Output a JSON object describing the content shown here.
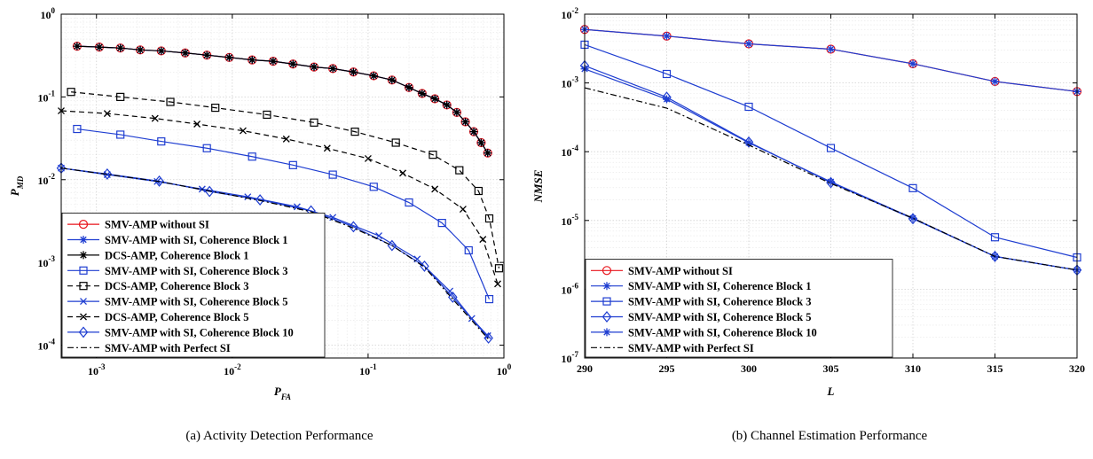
{
  "chart_data": [
    {
      "type": "line",
      "xscale": "log",
      "yscale": "log",
      "xlim": [
        0.00055,
        1
      ],
      "ylim": [
        7e-05,
        1
      ],
      "xlabel": "P",
      "xlabel_sub": "FA",
      "ylabel": "P",
      "ylabel_sub": "MD",
      "grid": true,
      "legend_position": "bottom-left",
      "caption": "(a)  Activity Detection Performance",
      "xticks": [
        {
          "v": 0.001,
          "base": "10",
          "exp": "-3"
        },
        {
          "v": 0.01,
          "base": "10",
          "exp": "-2"
        },
        {
          "v": 0.1,
          "base": "10",
          "exp": "-1"
        },
        {
          "v": 1,
          "base": "10",
          "exp": "0"
        }
      ],
      "yticks": [
        {
          "v": 0.0001,
          "base": "10",
          "exp": "-4"
        },
        {
          "v": 0.001,
          "base": "10",
          "exp": "-3"
        },
        {
          "v": 0.01,
          "base": "10",
          "exp": "-2"
        },
        {
          "v": 0.1,
          "base": "10",
          "exp": "-1"
        },
        {
          "v": 1,
          "base": "10",
          "exp": "0"
        }
      ],
      "series": [
        {
          "name": "SMV-AMP without SI",
          "color": "#e8141b",
          "dash": "",
          "marker": "circle",
          "x": [
            0.00072,
            0.00105,
            0.0015,
            0.0021,
            0.003,
            0.0045,
            0.0065,
            0.0095,
            0.014,
            0.02,
            0.028,
            0.04,
            0.055,
            0.078,
            0.11,
            0.15,
            0.2,
            0.25,
            0.31,
            0.38,
            0.45,
            0.52,
            0.6,
            0.68,
            0.76
          ],
          "y": [
            0.41,
            0.4,
            0.39,
            0.37,
            0.36,
            0.34,
            0.32,
            0.3,
            0.28,
            0.27,
            0.25,
            0.23,
            0.22,
            0.2,
            0.18,
            0.16,
            0.13,
            0.11,
            0.095,
            0.08,
            0.065,
            0.05,
            0.038,
            0.028,
            0.021
          ]
        },
        {
          "name": "SMV-AMP with SI, Coherence Block 1",
          "color": "#1f3ed1",
          "dash": "",
          "marker": "star",
          "x": [
            0.00072,
            0.00105,
            0.0015,
            0.0021,
            0.003,
            0.0045,
            0.0065,
            0.0095,
            0.014,
            0.02,
            0.028,
            0.04,
            0.055,
            0.078,
            0.11,
            0.15,
            0.2,
            0.25,
            0.31,
            0.38,
            0.45,
            0.52,
            0.6,
            0.68,
            0.76
          ],
          "y": [
            0.41,
            0.4,
            0.39,
            0.37,
            0.36,
            0.34,
            0.32,
            0.3,
            0.28,
            0.27,
            0.25,
            0.23,
            0.22,
            0.2,
            0.18,
            0.16,
            0.13,
            0.11,
            0.095,
            0.08,
            0.065,
            0.05,
            0.038,
            0.028,
            0.021
          ]
        },
        {
          "name": "DCS-AMP, Coherence Block 1",
          "color": "#000000",
          "dash": "",
          "marker": "star",
          "x": [
            0.00072,
            0.00105,
            0.0015,
            0.0021,
            0.003,
            0.0045,
            0.0065,
            0.0095,
            0.014,
            0.02,
            0.028,
            0.04,
            0.055,
            0.078,
            0.11,
            0.15,
            0.2,
            0.25,
            0.31,
            0.38,
            0.45,
            0.52,
            0.6,
            0.68,
            0.76
          ],
          "y": [
            0.41,
            0.4,
            0.39,
            0.37,
            0.36,
            0.34,
            0.32,
            0.3,
            0.28,
            0.27,
            0.25,
            0.23,
            0.22,
            0.2,
            0.18,
            0.16,
            0.13,
            0.11,
            0.095,
            0.08,
            0.065,
            0.05,
            0.038,
            0.028,
            0.021
          ]
        },
        {
          "name": "SMV-AMP with SI, Coherence Block 3",
          "color": "#1f3ed1",
          "dash": "",
          "marker": "square",
          "x": [
            0.00072,
            0.0015,
            0.003,
            0.0065,
            0.014,
            0.028,
            0.055,
            0.11,
            0.2,
            0.35,
            0.55,
            0.78
          ],
          "y": [
            0.041,
            0.035,
            0.029,
            0.024,
            0.019,
            0.015,
            0.0115,
            0.0082,
            0.0053,
            0.003,
            0.0014,
            0.00036
          ]
        },
        {
          "name": "DCS-AMP, Coherence Block 3",
          "color": "#000000",
          "dash": "6,4",
          "marker": "square",
          "x": [
            0.00065,
            0.0015,
            0.0035,
            0.0075,
            0.018,
            0.04,
            0.08,
            0.16,
            0.3,
            0.47,
            0.65,
            0.78,
            0.92
          ],
          "y": [
            0.115,
            0.1,
            0.087,
            0.074,
            0.061,
            0.049,
            0.038,
            0.028,
            0.02,
            0.013,
            0.0073,
            0.0034,
            0.00085
          ]
        },
        {
          "name": "SMV-AMP with SI, Coherence Block 5",
          "color": "#1f3ed1",
          "dash": "",
          "marker": "x",
          "x": [
            0.00055,
            0.0012,
            0.0028,
            0.006,
            0.013,
            0.03,
            0.055,
            0.12,
            0.23,
            0.4,
            0.58,
            0.76
          ],
          "y": [
            0.0138,
            0.0115,
            0.0095,
            0.0077,
            0.0062,
            0.0047,
            0.0035,
            0.0021,
            0.0011,
            0.00045,
            0.00021,
            0.00013
          ]
        },
        {
          "name": "DCS-AMP, Coherence Block 5",
          "color": "#000000",
          "dash": "6,4",
          "marker": "x",
          "x": [
            0.00055,
            0.0012,
            0.0027,
            0.0055,
            0.012,
            0.025,
            0.05,
            0.1,
            0.18,
            0.31,
            0.5,
            0.7,
            0.9
          ],
          "y": [
            0.068,
            0.063,
            0.055,
            0.047,
            0.039,
            0.031,
            0.024,
            0.018,
            0.012,
            0.0077,
            0.0044,
            0.0019,
            0.00055
          ]
        },
        {
          "name": "SMV-AMP with SI, Coherence Block 10",
          "color": "#1f3ed1",
          "dash": "",
          "marker": "diamond",
          "x": [
            0.00055,
            0.0012,
            0.0029,
            0.0068,
            0.016,
            0.038,
            0.078,
            0.15,
            0.26,
            0.42,
            0.77
          ],
          "y": [
            0.0138,
            0.0117,
            0.0096,
            0.0072,
            0.0057,
            0.0042,
            0.0027,
            0.0016,
            0.0009,
            0.00038,
            0.000122
          ]
        },
        {
          "name": "SMV-AMP with Perfect SI",
          "color": "#000000",
          "dash": "7,3,2,3",
          "marker": "none",
          "x": [
            0.00055,
            0.0012,
            0.0029,
            0.0068,
            0.016,
            0.038,
            0.078,
            0.15,
            0.26,
            0.42,
            0.77
          ],
          "y": [
            0.0138,
            0.0116,
            0.0095,
            0.0073,
            0.0056,
            0.0041,
            0.0026,
            0.0016,
            0.00088,
            0.00036,
            0.000118
          ]
        }
      ]
    },
    {
      "type": "line",
      "xscale": "linear",
      "yscale": "log",
      "xlim": [
        290,
        320
      ],
      "ylim": [
        1e-07,
        0.01
      ],
      "xlabel": "L",
      "ylabel": "NMSE",
      "grid": true,
      "legend_position": "bottom-left",
      "caption": "(b)  Channel Estimation Performance",
      "xticks": [
        {
          "v": 290,
          "label": "290"
        },
        {
          "v": 295,
          "label": "295"
        },
        {
          "v": 300,
          "label": "300"
        },
        {
          "v": 305,
          "label": "305"
        },
        {
          "v": 310,
          "label": "310"
        },
        {
          "v": 315,
          "label": "315"
        },
        {
          "v": 320,
          "label": "320"
        }
      ],
      "yticks": [
        {
          "v": 1e-07,
          "base": "10",
          "exp": "-7"
        },
        {
          "v": 1e-06,
          "base": "10",
          "exp": "-6"
        },
        {
          "v": 1e-05,
          "base": "10",
          "exp": "-5"
        },
        {
          "v": 0.0001,
          "base": "10",
          "exp": "-4"
        },
        {
          "v": 0.001,
          "base": "10",
          "exp": "-3"
        },
        {
          "v": 0.01,
          "base": "10",
          "exp": "-2"
        }
      ],
      "series": [
        {
          "name": "SMV-AMP without SI",
          "color": "#e8141b",
          "dash": "",
          "marker": "circle",
          "x": [
            290,
            295,
            300,
            305,
            310,
            315,
            320
          ],
          "y": [
            0.006,
            0.0048,
            0.0037,
            0.0031,
            0.0019,
            0.00105,
            0.00075
          ]
        },
        {
          "name": "SMV-AMP with SI, Coherence Block 1",
          "color": "#1f3ed1",
          "dash": "",
          "marker": "star",
          "x": [
            290,
            295,
            300,
            305,
            310,
            315,
            320
          ],
          "y": [
            0.006,
            0.0048,
            0.0037,
            0.0031,
            0.0019,
            0.00105,
            0.00075
          ]
        },
        {
          "name": "SMV-AMP with SI, Coherence Block 3",
          "color": "#1f3ed1",
          "dash": "",
          "marker": "square",
          "x": [
            290,
            295,
            300,
            305,
            310,
            315,
            320
          ],
          "y": [
            0.0036,
            0.00135,
            0.00045,
            0.000113,
            2.95e-05,
            5.7e-06,
            2.9e-06
          ]
        },
        {
          "name": "SMV-AMP with SI, Coherence Block 5",
          "color": "#1f3ed1",
          "dash": "",
          "marker": "diamond",
          "x": [
            290,
            295,
            300,
            305,
            310,
            315,
            320
          ],
          "y": [
            0.00178,
            0.00062,
            0.000138,
            3.55e-05,
            1.06e-05,
            3e-06,
            1.9e-06
          ]
        },
        {
          "name": "SMV-AMP with SI, Coherence Block 10",
          "color": "#1f3ed1",
          "dash": "",
          "marker": "star",
          "x": [
            290,
            295,
            300,
            305,
            310,
            315,
            320
          ],
          "y": [
            0.0016,
            0.00058,
            0.000135,
            3.65e-05,
            1.08e-05,
            3e-06,
            1.9e-06
          ]
        },
        {
          "name": "SMV-AMP with Perfect SI",
          "color": "#000000",
          "dash": "7,3,2,3",
          "marker": "none",
          "x": [
            290,
            295,
            300,
            305,
            310,
            315,
            320
          ],
          "y": [
            0.00085,
            0.00043,
            0.000125,
            3.45e-05,
            1.08e-05,
            3e-06,
            1.9e-06
          ]
        }
      ]
    }
  ]
}
